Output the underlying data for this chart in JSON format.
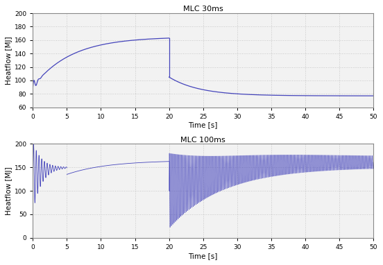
{
  "title1": "MLC 30ms",
  "title2": "MLC 100ms",
  "xlabel": "Time [s]",
  "ylabel1": "Heatflow [MJ]",
  "ylabel2": "Heatflow [MJ]",
  "xlim": [
    0,
    50
  ],
  "ylim1": [
    60,
    200
  ],
  "ylim2": [
    0,
    200
  ],
  "yticks1": [
    60,
    80,
    100,
    120,
    140,
    160,
    180,
    200
  ],
  "yticks2": [
    0,
    50,
    100,
    150,
    200
  ],
  "xticks": [
    0,
    5,
    10,
    15,
    20,
    25,
    30,
    35,
    40,
    45,
    50
  ],
  "line_color": "#4444bb",
  "grid_color": "#d0d0d0",
  "bg_color": "#ffffff",
  "axes_bg": "#f0f0f0",
  "step_time": 20
}
